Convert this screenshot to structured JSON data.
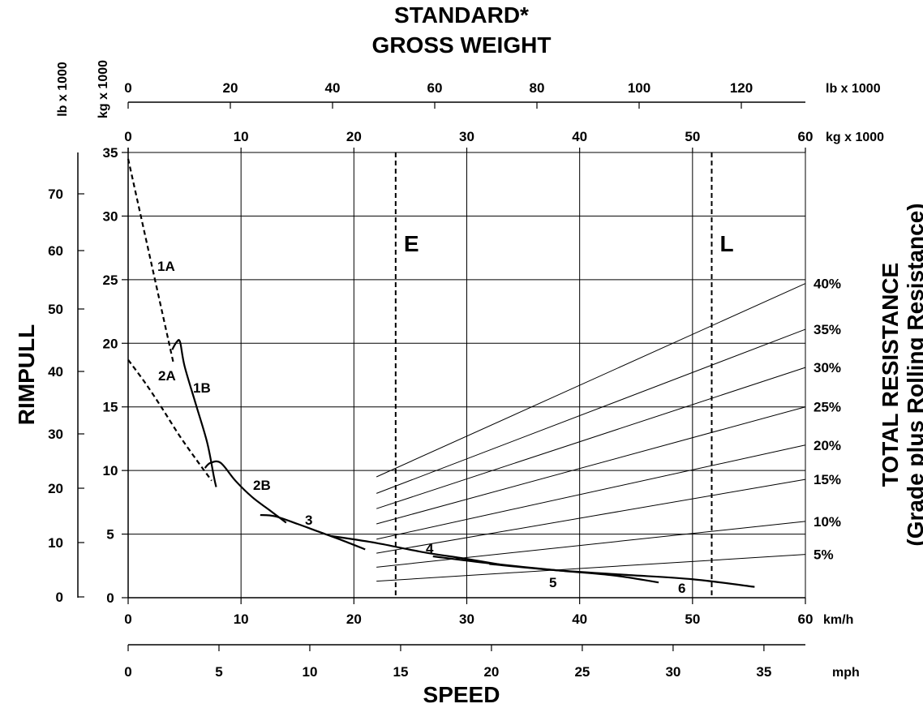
{
  "chart_data": {
    "type": "line",
    "title_lines": [
      "STANDARD*",
      "GROSS WEIGHT"
    ],
    "xlabel": "SPEED",
    "ylabel": "RIMPULL",
    "right_label_lines": [
      "TOTAL RESISTANCE",
      "(Grade plus Rolling Resistance)"
    ],
    "axes": {
      "speed_kmh": {
        "unit": "km/h",
        "ticks": [
          "0",
          "10",
          "20",
          "30",
          "40",
          "50",
          "60"
        ],
        "range": [
          0,
          60
        ]
      },
      "speed_mph": {
        "unit": "mph",
        "ticks": [
          "0",
          "5",
          "10",
          "15",
          "20",
          "25",
          "30",
          "35"
        ]
      },
      "gross_weight_kg": {
        "unit": "kg x 1000",
        "ticks": [
          "0",
          "10",
          "20",
          "30",
          "40",
          "50",
          "60"
        ],
        "range": [
          0,
          60
        ]
      },
      "gross_weight_lb": {
        "unit": "lb x 1000",
        "ticks": [
          "0",
          "20",
          "40",
          "60",
          "80",
          "100",
          "120"
        ]
      },
      "rimpull_kg": {
        "unit": "kg x 1000",
        "ticks": [
          "0",
          "5",
          "10",
          "15",
          "20",
          "25",
          "30",
          "35"
        ],
        "range": [
          0,
          35
        ]
      },
      "rimpull_lb": {
        "unit": "lb x 1000",
        "ticks": [
          "0",
          "10",
          "20",
          "30",
          "40",
          "50",
          "60",
          "70"
        ]
      }
    },
    "grid": true,
    "weight_markers": [
      {
        "label": "E",
        "kg_x1000": 23.7
      },
      {
        "label": "L",
        "kg_x1000": 51.7
      }
    ],
    "series": [
      {
        "name": "1A",
        "dashed": true,
        "points": [
          [
            0,
            34.5
          ],
          [
            1,
            30.5
          ],
          [
            2,
            26.5
          ],
          [
            3,
            22.5
          ],
          [
            4,
            18.5
          ]
        ]
      },
      {
        "name": "1B",
        "dashed": false,
        "points": [
          [
            3.9,
            19.5
          ],
          [
            4.3,
            20.1
          ],
          [
            4.6,
            20.1
          ],
          [
            5.0,
            18.2
          ],
          [
            6.0,
            15.2
          ],
          [
            7.0,
            12.2
          ],
          [
            7.6,
            9.5
          ],
          [
            7.8,
            8.7
          ]
        ]
      },
      {
        "name": "2A",
        "dashed": true,
        "points": [
          [
            0,
            18.7
          ],
          [
            1.5,
            16.9
          ],
          [
            3,
            14.9
          ],
          [
            4.5,
            12.8
          ],
          [
            6,
            10.9
          ],
          [
            7.4,
            9.2
          ]
        ]
      },
      {
        "name": "2B",
        "dashed": false,
        "points": [
          [
            6.8,
            10.2
          ],
          [
            7.3,
            10.6
          ],
          [
            8.2,
            10.6
          ],
          [
            9.5,
            9.2
          ],
          [
            11,
            7.9
          ],
          [
            12.5,
            6.9
          ],
          [
            14,
            5.9
          ]
        ]
      },
      {
        "name": "3",
        "dashed": false,
        "points": [
          [
            11.7,
            6.5
          ],
          [
            13,
            6.4
          ],
          [
            15,
            5.8
          ],
          [
            17,
            5.15
          ],
          [
            19,
            4.5
          ],
          [
            21,
            3.8
          ]
        ]
      },
      {
        "name": "4",
        "dashed": false,
        "points": [
          [
            18,
            4.85
          ],
          [
            22,
            4.3
          ],
          [
            26,
            3.6
          ],
          [
            30,
            3.05
          ],
          [
            33,
            2.6
          ]
        ]
      },
      {
        "name": "5",
        "dashed": false,
        "points": [
          [
            27,
            3.25
          ],
          [
            32,
            2.7
          ],
          [
            38,
            2.15
          ],
          [
            43,
            1.75
          ],
          [
            47,
            1.2
          ]
        ]
      },
      {
        "name": "6",
        "dashed": false,
        "points": [
          [
            32,
            2.65
          ],
          [
            38,
            2.15
          ],
          [
            44,
            1.8
          ],
          [
            50,
            1.45
          ],
          [
            55.5,
            0.85
          ]
        ]
      }
    ],
    "resistance_lines": [
      {
        "label": "40%",
        "from": [
          22,
          9.5
        ],
        "to": [
          60,
          24.7
        ]
      },
      {
        "label": "35%",
        "from": [
          22,
          8.2
        ],
        "to": [
          60,
          21.1
        ]
      },
      {
        "label": "30%",
        "from": [
          22,
          7.0
        ],
        "to": [
          60,
          18.1
        ]
      },
      {
        "label": "25%",
        "from": [
          22,
          5.8
        ],
        "to": [
          60,
          15.0
        ]
      },
      {
        "label": "20%",
        "from": [
          22,
          4.6
        ],
        "to": [
          60,
          12.0
        ]
      },
      {
        "label": "15%",
        "from": [
          22,
          3.5
        ],
        "to": [
          60,
          9.3
        ]
      },
      {
        "label": "10%",
        "from": [
          22,
          2.4
        ],
        "to": [
          60,
          6.0
        ]
      },
      {
        "label": "5%",
        "from": [
          22,
          1.3
        ],
        "to": [
          60,
          3.4
        ]
      }
    ]
  }
}
